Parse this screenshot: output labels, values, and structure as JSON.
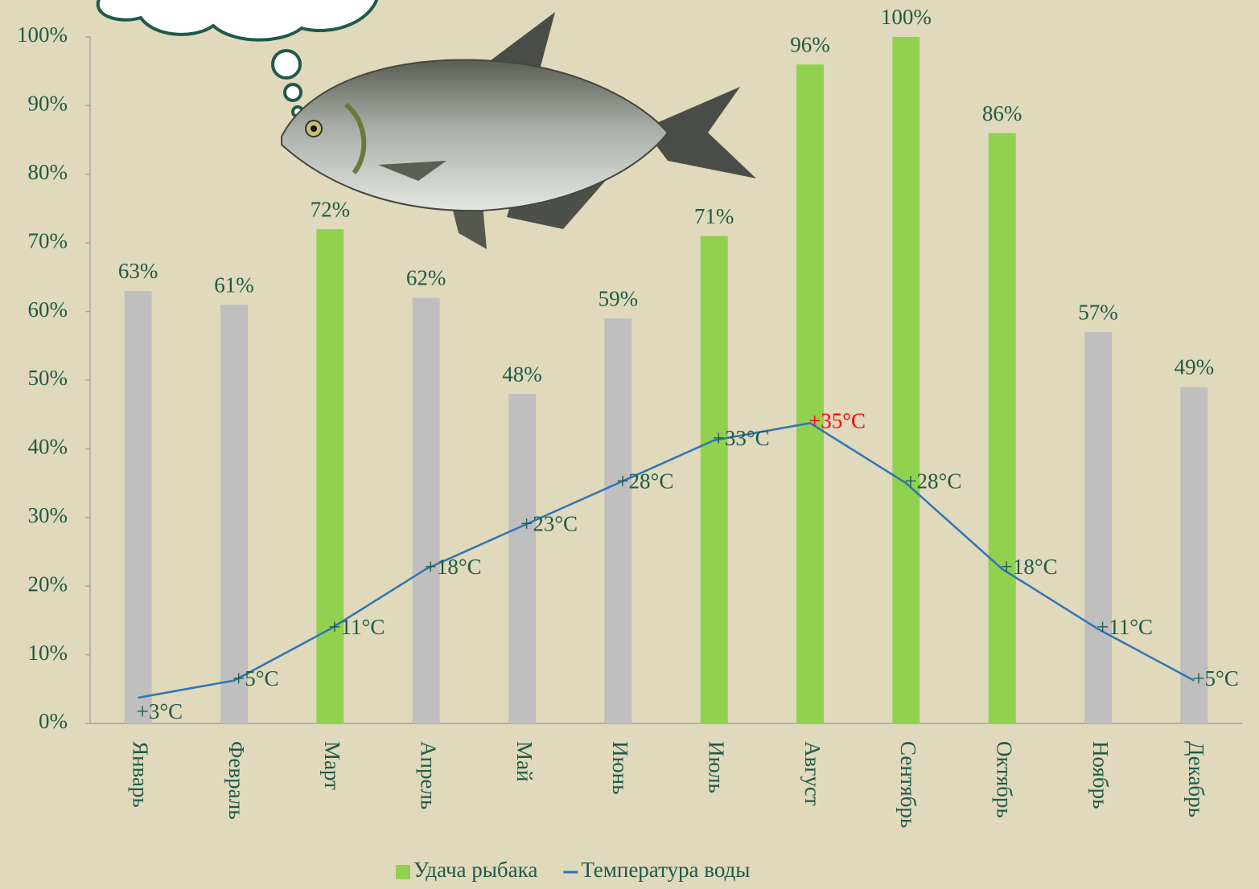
{
  "chart_data": {
    "type": "bar",
    "categories": [
      "Январь",
      "Февраль",
      "Март",
      "Апрель",
      "Май",
      "Июнь",
      "Июль",
      "Август",
      "Сентябрь",
      "Октябрь",
      "Ноябрь",
      "Декабрь"
    ],
    "series": [
      {
        "name": "Удача рыбака",
        "type": "bar",
        "color": "#92d050",
        "colors": [
          "#bfbfbf",
          "#bfbfbf",
          "#92d050",
          "#bfbfbf",
          "#bfbfbf",
          "#bfbfbf",
          "#92d050",
          "#92d050",
          "#92d050",
          "#92d050",
          "#bfbfbf",
          "#bfbfbf"
        ],
        "values": [
          63,
          61,
          72,
          62,
          48,
          59,
          71,
          96,
          100,
          86,
          57,
          49
        ],
        "value_labels": [
          "63%",
          "61%",
          "72%",
          "62%",
          "48%",
          "59%",
          "71%",
          "96%",
          "100%",
          "86%",
          "57%",
          "49%"
        ]
      },
      {
        "name": "Температура воды",
        "type": "line",
        "axis": "y2",
        "color": "#2e75b6",
        "values": [
          3,
          5,
          11,
          18,
          23,
          28,
          33,
          35,
          28,
          18,
          11,
          5
        ],
        "value_labels": [
          "+3°C",
          "+5°C",
          "+11°C",
          "+18°C",
          "+23°C",
          "+28°C",
          "+33°C",
          "+35°C",
          "+28°C",
          "+18°C",
          "+11°C",
          "+5°C"
        ],
        "label_colors": [
          "#1f5a4a",
          "#1f5a4a",
          "#1f5a4a",
          "#1f5a4a",
          "#1f5a4a",
          "#1f5a4a",
          "#1f5a4a",
          "#ff0000",
          "#1f5a4a",
          "#1f5a4a",
          "#1f5a4a",
          "#1f5a4a"
        ]
      }
    ],
    "ylim": [
      0,
      100
    ],
    "yticks": [
      {
        "value": 0,
        "label": "0%"
      },
      {
        "value": 10,
        "label": "10%"
      },
      {
        "value": 20,
        "label": "20%"
      },
      {
        "value": 30,
        "label": "30%"
      },
      {
        "value": 40,
        "label": "40%"
      },
      {
        "value": 50,
        "label": "50%"
      },
      {
        "value": 60,
        "label": "60%"
      },
      {
        "value": 70,
        "label": "70%"
      },
      {
        "value": 80,
        "label": "80%"
      },
      {
        "value": 90,
        "label": "90%"
      },
      {
        "value": 100,
        "label": "100%"
      }
    ],
    "y2lim": [
      0,
      80
    ],
    "legend": "bottom"
  }
}
